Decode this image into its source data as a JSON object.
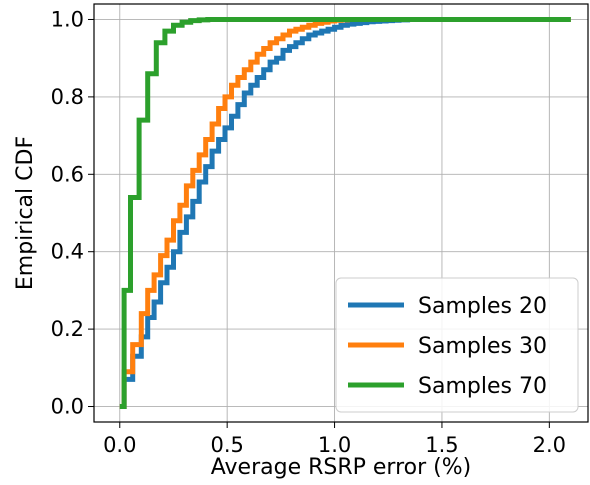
{
  "chart_data": {
    "type": "line",
    "title": "",
    "xlabel": "Average RSRP error (%)",
    "ylabel": "Empirical CDF",
    "xlim": [
      -0.12,
      2.18
    ],
    "ylim": [
      -0.04,
      1.04
    ],
    "xticks": [
      {
        "value": 0.0,
        "label": "0.0"
      },
      {
        "value": 0.5,
        "label": "0.5"
      },
      {
        "value": 1.0,
        "label": "1.0"
      },
      {
        "value": 1.5,
        "label": "1.5"
      },
      {
        "value": 2.0,
        "label": "2.0"
      }
    ],
    "yticks": [
      {
        "value": 0.0,
        "label": "0.0"
      },
      {
        "value": 0.2,
        "label": "0.2"
      },
      {
        "value": 0.4,
        "label": "0.4"
      },
      {
        "value": 0.6,
        "label": "0.6"
      },
      {
        "value": 0.8,
        "label": "0.8"
      },
      {
        "value": 1.0,
        "label": "1.0"
      }
    ],
    "grid": true,
    "legend_position": "bottom-right",
    "series": [
      {
        "name": "Samples 20",
        "color": "#1f77b4",
        "x": [
          0.0,
          0.02,
          0.06,
          0.1,
          0.13,
          0.16,
          0.19,
          0.22,
          0.25,
          0.28,
          0.31,
          0.34,
          0.37,
          0.4,
          0.43,
          0.46,
          0.49,
          0.52,
          0.55,
          0.58,
          0.61,
          0.64,
          0.67,
          0.7,
          0.73,
          0.76,
          0.79,
          0.82,
          0.85,
          0.88,
          0.91,
          0.94,
          0.97,
          1.0,
          1.03,
          1.06,
          1.09,
          1.12,
          1.15,
          1.18,
          1.21,
          1.24,
          1.27,
          1.3,
          1.34,
          1.38,
          1.42,
          1.46,
          1.5,
          1.55,
          1.6,
          1.65,
          1.7,
          2.1
        ],
        "y": [
          0.0,
          0.07,
          0.13,
          0.18,
          0.23,
          0.27,
          0.32,
          0.36,
          0.4,
          0.45,
          0.49,
          0.53,
          0.58,
          0.62,
          0.66,
          0.69,
          0.72,
          0.75,
          0.78,
          0.81,
          0.83,
          0.85,
          0.87,
          0.89,
          0.9,
          0.92,
          0.93,
          0.94,
          0.95,
          0.96,
          0.965,
          0.97,
          0.975,
          0.98,
          0.985,
          0.988,
          0.99,
          0.992,
          0.994,
          0.995,
          0.996,
          0.997,
          0.998,
          0.999,
          1.0,
          1.0,
          1.0,
          1.0,
          1.0,
          1.0,
          1.0,
          1.0,
          1.0,
          1.0
        ]
      },
      {
        "name": "Samples 30",
        "color": "#ff7f0e",
        "x": [
          0.0,
          0.02,
          0.06,
          0.1,
          0.13,
          0.16,
          0.19,
          0.22,
          0.25,
          0.28,
          0.31,
          0.34,
          0.37,
          0.4,
          0.43,
          0.46,
          0.49,
          0.52,
          0.55,
          0.58,
          0.61,
          0.64,
          0.67,
          0.7,
          0.73,
          0.76,
          0.79,
          0.82,
          0.85,
          0.88,
          0.91,
          0.94,
          0.97,
          1.0,
          1.03,
          1.06,
          1.09,
          1.12,
          1.15,
          1.2,
          1.3,
          2.1
        ],
        "y": [
          0.0,
          0.09,
          0.16,
          0.24,
          0.3,
          0.34,
          0.39,
          0.43,
          0.48,
          0.52,
          0.57,
          0.61,
          0.65,
          0.69,
          0.73,
          0.77,
          0.8,
          0.83,
          0.85,
          0.87,
          0.89,
          0.91,
          0.925,
          0.94,
          0.95,
          0.96,
          0.97,
          0.975,
          0.98,
          0.985,
          0.99,
          0.993,
          0.996,
          0.998,
          0.999,
          1.0,
          1.0,
          1.0,
          1.0,
          1.0,
          1.0,
          1.0
        ]
      },
      {
        "name": "Samples 70",
        "color": "#2ca02c",
        "x": [
          0.0,
          0.02,
          0.05,
          0.09,
          0.13,
          0.17,
          0.21,
          0.25,
          0.29,
          0.33,
          0.37,
          0.41,
          0.45,
          0.5,
          2.1
        ],
        "y": [
          0.0,
          0.3,
          0.54,
          0.74,
          0.86,
          0.94,
          0.97,
          0.985,
          0.993,
          0.997,
          0.999,
          1.0,
          1.0,
          1.0,
          1.0
        ]
      }
    ]
  }
}
